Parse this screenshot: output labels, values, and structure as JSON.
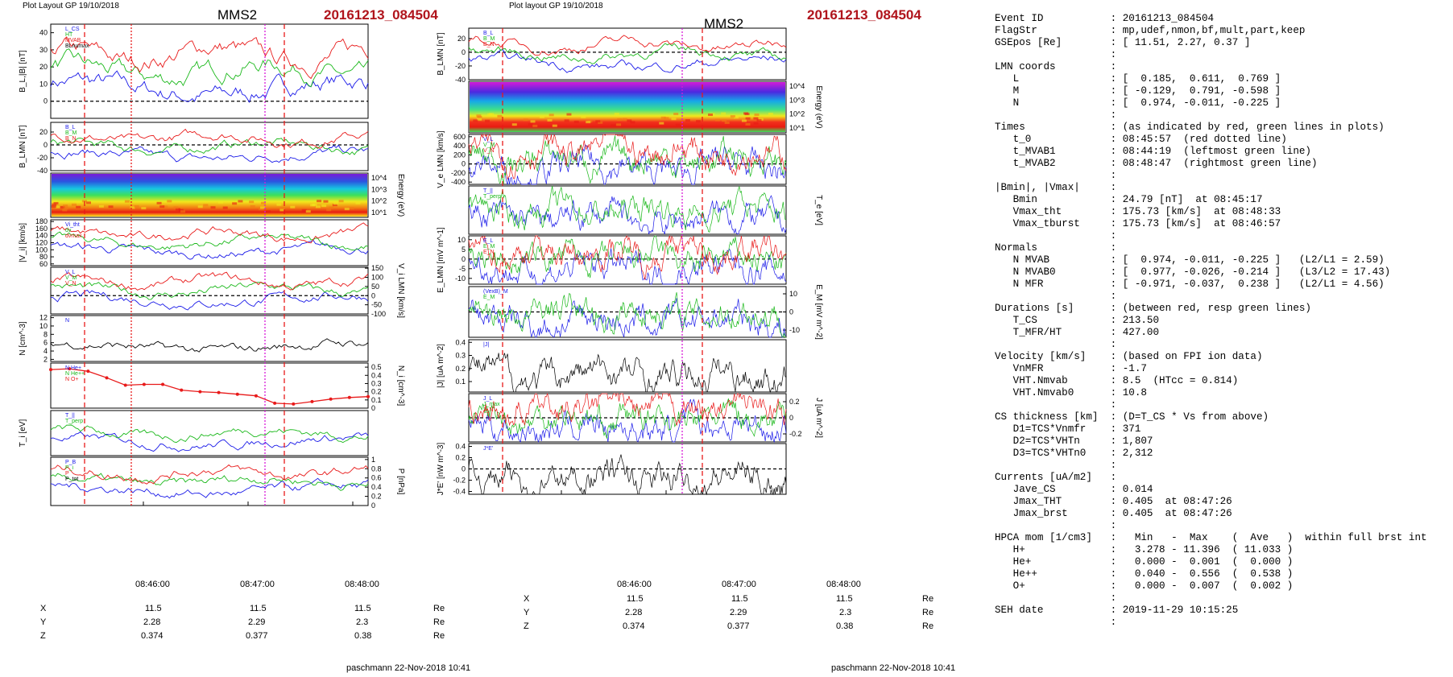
{
  "left_panel": {
    "header_left": "Plot Layout GP 19/10/2018",
    "title": "MMS2",
    "event": "20161213_084504",
    "footer": "paschmann 22-Nov-2018 10:41",
    "time_ticks": [
      "08:46:00",
      "08:47:00",
      "08:48:00"
    ],
    "coords": [
      {
        "label": "X",
        "values": [
          "11.5",
          "11.5",
          "11.5"
        ],
        "unit": "Re"
      },
      {
        "label": "Y",
        "values": [
          "2.28",
          "2.29",
          "2.3"
        ],
        "unit": "Re"
      },
      {
        "label": "Z",
        "values": [
          "0.374",
          "0.377",
          "0.38"
        ],
        "unit": "Re"
      }
    ]
  },
  "right_panel": {
    "header_left": "Plot layout GP 19/10/2018",
    "title": "MMS2",
    "event": "20161213_084504",
    "footer": "paschmann 22-Nov-2018 10:41",
    "time_ticks": [
      "08:46:00",
      "08:47:00",
      "08:48:00"
    ],
    "coords": [
      {
        "label": "X",
        "values": [
          "11.5",
          "11.5",
          "11.5"
        ],
        "unit": "Re"
      },
      {
        "label": "Y",
        "values": [
          "2.28",
          "2.29",
          "2.3"
        ],
        "unit": "Re"
      },
      {
        "label": "Z",
        "values": [
          "0.374",
          "0.377",
          "0.38"
        ],
        "unit": "Re"
      }
    ]
  },
  "chart_data": [
    {
      "type": "line",
      "name": "left-bl-b",
      "ylabel": "B_L,|B| [nT]",
      "yticks": [
        0,
        10,
        20,
        30,
        40
      ],
      "ylim": [
        -10,
        45
      ],
      "legend": [
        "L_CS",
        "HT",
        "MVAB",
        "BLnumax",
        "BL 50% of BL",
        "BL",
        "Bhat"
      ]
    },
    {
      "type": "line",
      "name": "left-blmn",
      "ylabel": "B_LMN [nT]",
      "yticks": [
        -40,
        -20,
        0,
        20
      ],
      "ylim": [
        -40,
        35
      ],
      "legend": [
        "B_L",
        "B_M",
        "B_N"
      ]
    },
    {
      "type": "heatmap",
      "name": "left-ion-spec",
      "ylabel": "Energy (eV)",
      "yticks": [
        "10^1",
        "10^2",
        "10^3",
        "10^4"
      ]
    },
    {
      "type": "line",
      "name": "left-vi-mag",
      "ylabel": "|V_i| [km/s]",
      "yticks": [
        60,
        80,
        100,
        120,
        140,
        160,
        180
      ],
      "ylim": [
        55,
        185
      ],
      "legend": [
        "Vi_tht",
        "dv",
        "dvmax"
      ]
    },
    {
      "type": "line",
      "name": "left-vi-lmn",
      "ylabel": "V_i LMN [km/s]",
      "yticks": [
        -100,
        -50,
        0,
        50,
        100,
        150
      ],
      "ylim": [
        -100,
        155
      ],
      "legend": [
        "V_L",
        "V_M",
        "V_N"
      ]
    },
    {
      "type": "line",
      "name": "left-density",
      "ylabel": "N [cm^-3]",
      "yticks": [
        2,
        4,
        6,
        8,
        10,
        12
      ],
      "ylim": [
        1.5,
        12.5
      ],
      "legend": [
        "N"
      ]
    },
    {
      "type": "line",
      "name": "left-hpca",
      "ylabel": "N_i [cm^-3]",
      "yticks": [
        0.0,
        0.1,
        0.2,
        0.3,
        0.4,
        0.5
      ],
      "ylim": [
        0,
        0.55
      ],
      "legend": [
        "N He+",
        "N He++",
        "N O+"
      ],
      "series": [
        {
          "name": "N He++",
          "values": [
            0.47,
            0.48,
            0.45,
            0.37,
            0.28,
            0.29,
            0.29,
            0.22,
            0.2,
            0.19,
            0.17,
            0.15,
            0.06,
            0.05,
            0.08,
            0.11,
            0.13,
            0.14
          ]
        }
      ]
    },
    {
      "type": "line",
      "name": "left-temp",
      "ylabel": "T_i [eV]",
      "legend": [
        "T_||",
        "T_perp"
      ]
    },
    {
      "type": "line",
      "name": "left-pressure",
      "ylabel": "P [nPa]",
      "yticks": [
        0.0,
        0.2,
        0.4,
        0.6,
        0.8,
        1.0
      ],
      "ylim": [
        0,
        1.05
      ],
      "legend": [
        "P_B",
        "P_i",
        "P",
        "P_tot"
      ]
    },
    {
      "type": "line",
      "name": "right-blmn",
      "ylabel": "B_LMN [nT]",
      "yticks": [
        -40,
        -20,
        0,
        20
      ],
      "ylim": [
        -40,
        35
      ],
      "legend": [
        "B_L",
        "B_M",
        "B_N"
      ]
    },
    {
      "type": "heatmap",
      "name": "right-elec-spec",
      "ylabel": "Energy (eV)",
      "yticks": [
        "10^1",
        "10^2",
        "10^3",
        "10^4"
      ]
    },
    {
      "type": "line",
      "name": "right-ve",
      "ylabel": "V_e LMN [km/s]",
      "yticks": [
        -400,
        -200,
        0,
        200,
        400,
        600
      ],
      "ylim": [
        -450,
        650
      ],
      "legend": [
        "V_L",
        "V_M",
        "V_N"
      ]
    },
    {
      "type": "line",
      "name": "right-te",
      "ylabel": "T_e [eV]",
      "legend": [
        "T_||",
        "T_perp"
      ]
    },
    {
      "type": "line",
      "name": "right-e",
      "ylabel": "E_LMN [mV m^-1]",
      "yticks": [
        -10,
        -5,
        0,
        5,
        10
      ],
      "ylim": [
        -13,
        12
      ],
      "legend": [
        "E_L",
        "E_M",
        "E_N"
      ]
    },
    {
      "type": "line",
      "name": "right-em",
      "ylabel": "E_M [mV m^-2]",
      "yticks": [
        -10,
        0,
        10
      ],
      "ylim": [
        -14,
        14
      ],
      "legend": [
        "(VexB)_M",
        "E_M"
      ]
    },
    {
      "type": "line",
      "name": "right-j",
      "ylabel": "|J| [uA m^-2]",
      "yticks": [
        0.1,
        0.2,
        0.3,
        0.4
      ],
      "ylim": [
        0.02,
        0.42
      ],
      "legend": [
        "|J|"
      ]
    },
    {
      "type": "line",
      "name": "right-jlmn",
      "ylabel": "J [uA m^-2]",
      "yticks": [
        -0.2,
        0.0,
        0.2
      ],
      "ylim": [
        -0.3,
        0.3
      ],
      "legend": [
        "J_L",
        "J_max",
        "J_N"
      ]
    },
    {
      "type": "line",
      "name": "right-je",
      "ylabel": "J*E' [nW m^-3]",
      "yticks": [
        -0.4,
        -0.2,
        0.0,
        0.2,
        0.4
      ],
      "ylim": [
        -0.45,
        0.45
      ],
      "legend": [
        "J*E'"
      ]
    }
  ],
  "table_lines": [
    "Event ID           : 20161213_084504",
    "FlagStr            : mp,udef,nmon,bf,mult,part,keep",
    "GSEpos [Re]        : [ 11.51, 2.27, 0.37 ]",
    "                   :",
    "LMN coords         :",
    "   L               : [  0.185,  0.611,  0.769 ]",
    "   M               : [ -0.129,  0.791, -0.598 ]",
    "   N               : [  0.974, -0.011, -0.225 ]",
    "                   :",
    "Times              : (as indicated by red, green lines in plots)",
    "   t_0             : 08:45:57  (red dotted line)",
    "   t_MVAB1         : 08:44:19  (leftmost green line)",
    "   t_MVAB2         : 08:48:47  (rightmost green line)",
    "                   :",
    "|Bmin|, |Vmax|     :",
    "   Bmin            : 24.79 [nT]  at 08:45:17",
    "   Vmax_tht        : 175.73 [km/s]  at 08:48:33",
    "   Vmax_tburst     : 175.73 [km/s]  at 08:46:57",
    "                   :",
    "Normals            :",
    "   N MVAB          : [  0.974, -0.011, -0.225 ]   (L2/L1 = 2.59)",
    "   N MVAB0         : [  0.977, -0.026, -0.214 ]   (L3/L2 = 17.43)",
    "   N MFR           : [ -0.971, -0.037,  0.238 ]   (L2/L1 = 4.56)",
    "                   :",
    "Durations [s]      : (between red, resp green lines)",
    "   T_CS            : 213.50",
    "   T_MFR/HT        : 427.00",
    "                   :",
    "Velocity [km/s]    : (based on FPI ion data)",
    "   VnMFR           : -1.7",
    "   VHT.Nmvab       : 8.5  (HTcc = 0.814)",
    "   VHT.Nmvab0      : 10.8",
    "                   :",
    "CS thickness [km]  : (D=T_CS * Vs from above)",
    "   D1=TCS*Vnmfr    : 371",
    "   D2=TCS*VHTn     : 1,807",
    "   D3=TCS*VHTn0    : 2,312",
    "                   :",
    "Currents [uA/m2]   :",
    "   Jave_CS         : 0.014",
    "   Jmax_THT        : 0.405  at 08:47:26",
    "   Jmax_brst       : 0.405  at 08:47:26",
    "                   :",
    "HPCA mom [1/cm3]   :   Min   -  Max    (  Ave   )  within full brst int",
    "   H+              :   3.278 - 11.396  ( 11.033 )",
    "   He+             :   0.000 -  0.001  (  0.000 )",
    "   He++            :   0.040 -  0.556  (  0.538 )",
    "   O+              :   0.000 -  0.007  (  0.002 )",
    "                   :",
    "SEH date           : 2019-11-29 10:15:25",
    "                   :"
  ]
}
